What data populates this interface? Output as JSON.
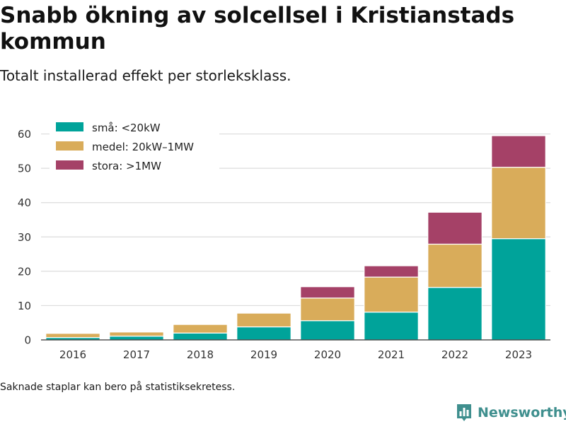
{
  "header": {
    "title": "Snabb ökning av solcellsel i Kristianstads kommun",
    "subtitle": "Totalt installerad effekt per storleksklass."
  },
  "footer": {
    "note": "Saknade staplar kan bero på statistiksekretess.",
    "brand": "Newsworthy",
    "brand_icon": "bar-chart-pin-icon"
  },
  "chart_data": {
    "type": "bar",
    "stacked": true,
    "categories": [
      "2016",
      "2017",
      "2018",
      "2019",
      "2020",
      "2021",
      "2022",
      "2023"
    ],
    "series": [
      {
        "name": "små: <20kW",
        "color": "#00a39a",
        "values": [
          0.7,
          1.1,
          2.0,
          3.8,
          5.6,
          8.1,
          15.3,
          29.5
        ]
      },
      {
        "name": "medel: 20kW–1MW",
        "color": "#d9ac5a",
        "values": [
          1.2,
          1.2,
          2.5,
          4.0,
          6.6,
          10.2,
          12.6,
          20.8
        ]
      },
      {
        "name": "stora: >1MW",
        "color": "#a54167",
        "values": [
          0,
          0,
          0,
          0,
          3.3,
          3.3,
          9.3,
          9.2
        ]
      }
    ],
    "yticks": [
      0,
      10,
      20,
      30,
      40,
      50,
      60
    ],
    "ylim": [
      0,
      63
    ],
    "grid": true,
    "legend_position": "top-left"
  }
}
